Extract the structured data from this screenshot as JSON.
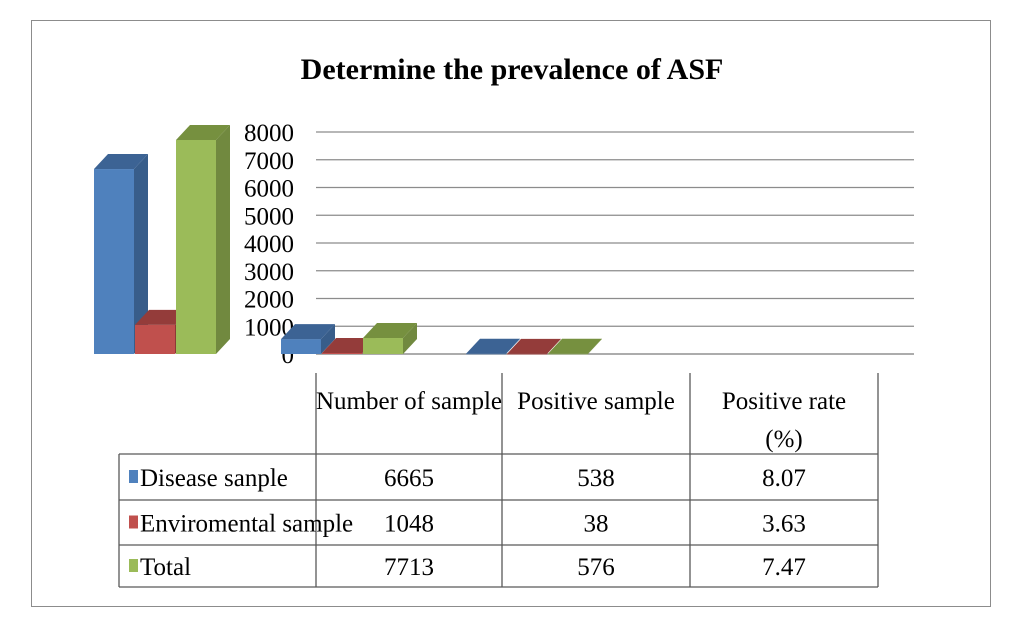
{
  "chart_data": {
    "type": "bar",
    "title": "Determine the prevalence of ASF",
    "categories": [
      "Number of sample",
      "Positive sample",
      "Positive rate (%)"
    ],
    "category_label_lines": [
      [
        "Number of sample"
      ],
      [
        "Positive sample"
      ],
      [
        "Positive rate",
        "(%)"
      ]
    ],
    "series": [
      {
        "name": "Disease sanple",
        "values": [
          6665,
          538,
          8.07
        ],
        "display": [
          "6665",
          "538",
          "8.07"
        ],
        "color": "#4f81bd",
        "side_color": "#385d8a",
        "top_color": "#3c6394"
      },
      {
        "name": "Enviromental sample",
        "values": [
          1048,
          38,
          3.63
        ],
        "display": [
          "1048",
          "38",
          "3.63"
        ],
        "color": "#c0504d",
        "side_color": "#8c3836",
        "top_color": "#943c3a"
      },
      {
        "name": "Total",
        "values": [
          7713,
          576,
          7.47
        ],
        "display": [
          "7713",
          "576",
          "7.47"
        ],
        "color": "#9bbb59",
        "side_color": "#71893f",
        "top_color": "#76903f"
      }
    ],
    "yticks": [
      "0",
      "1000",
      "2000",
      "3000",
      "4000",
      "5000",
      "6000",
      "7000",
      "8000"
    ],
    "ylim": [
      0,
      8000
    ],
    "grid": true,
    "legend": "data table",
    "three_d": true
  }
}
